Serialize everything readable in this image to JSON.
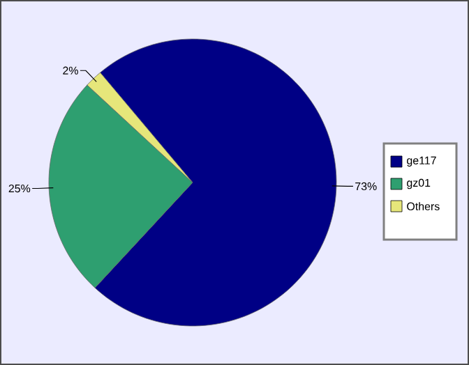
{
  "chart_data": {
    "type": "pie",
    "categories": [
      "ge117",
      "gz01",
      "Others"
    ],
    "values": [
      73,
      25,
      2
    ],
    "colors": [
      "#000085",
      "#2e9f70",
      "#e6e67a"
    ],
    "value_labels": [
      "73%",
      "25%",
      "2%"
    ],
    "legend": "right"
  }
}
